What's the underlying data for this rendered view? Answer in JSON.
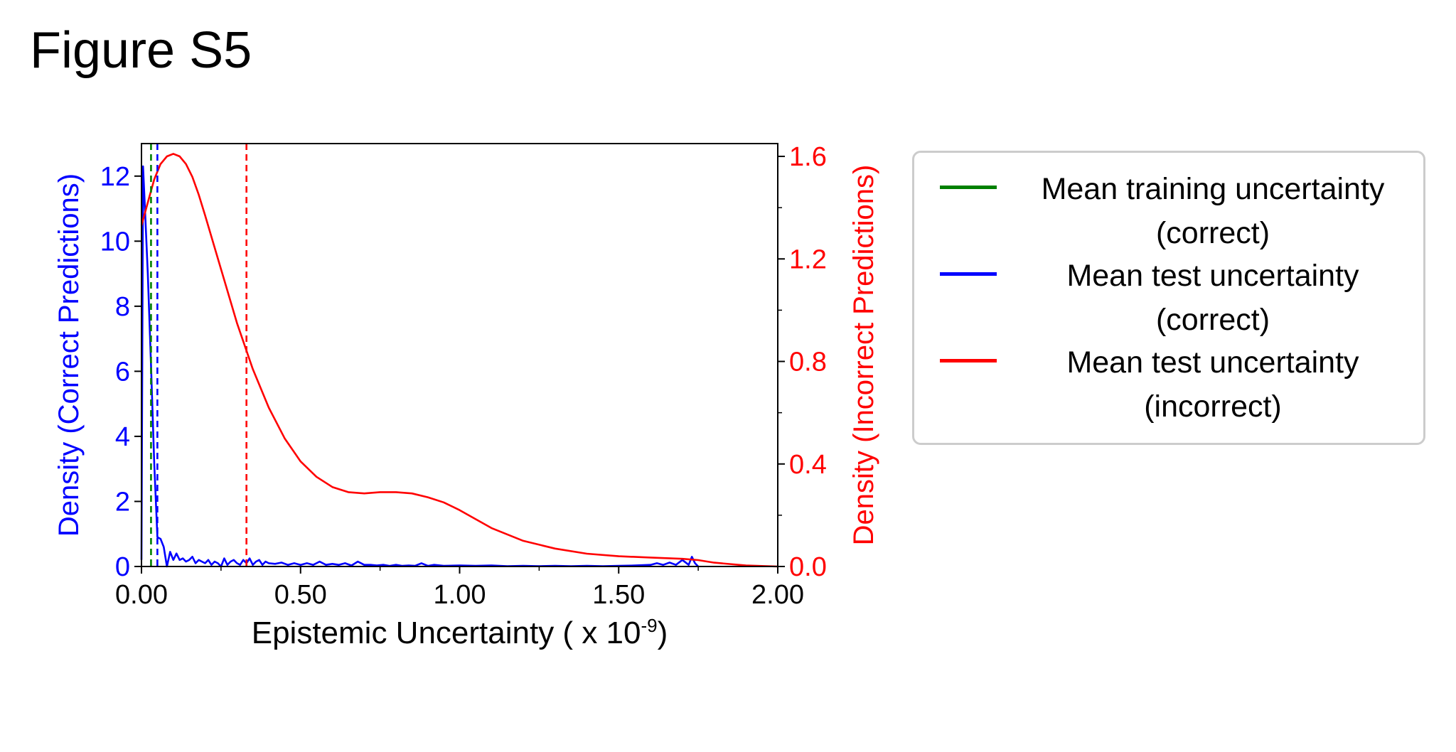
{
  "figure_title": "Figure S5",
  "chart_data": {
    "type": "line",
    "xlabel": "Epistemic Uncertainty ( x 10",
    "xlabel_exponent": "-9",
    "xlabel_suffix": ")",
    "xlim": [
      0,
      2.0
    ],
    "x_ticks": [
      "0.00",
      "0.50",
      "1.00",
      "1.50",
      "2.00"
    ],
    "x_tick_values": [
      0,
      0.5,
      1.0,
      1.5,
      2.0
    ],
    "x_minor_ticks": [
      0.25,
      0.75,
      1.25,
      1.75
    ],
    "y_left": {
      "label": "Density (Correct Predictions)",
      "color": "#0000ff",
      "ylim": [
        0,
        13
      ],
      "ticks": [
        "0",
        "2",
        "4",
        "6",
        "8",
        "10",
        "12"
      ],
      "tick_values": [
        0,
        2,
        4,
        6,
        8,
        10,
        12
      ]
    },
    "y_right": {
      "label": "Density (Incorrect Predictions)",
      "color": "#ff0000",
      "ylim": [
        0,
        1.65
      ],
      "ticks": [
        "0.0",
        "0.4",
        "0.8",
        "1.2",
        "1.6"
      ],
      "tick_values": [
        0,
        0.4,
        0.8,
        1.2,
        1.6
      ],
      "minor_ticks": [
        0.2,
        0.6,
        1.0,
        1.4
      ]
    },
    "series": [
      {
        "name": "Mean test uncertainty (correct)",
        "axis": "left",
        "color": "#0000ff",
        "x": [
          0.0,
          0.005,
          0.01,
          0.02,
          0.03,
          0.04,
          0.05,
          0.06,
          0.07,
          0.08,
          0.09,
          0.1,
          0.11,
          0.12,
          0.13,
          0.14,
          0.15,
          0.16,
          0.17,
          0.18,
          0.19,
          0.2,
          0.21,
          0.22,
          0.23,
          0.24,
          0.25,
          0.26,
          0.27,
          0.28,
          0.29,
          0.3,
          0.31,
          0.32,
          0.33,
          0.34,
          0.35,
          0.36,
          0.37,
          0.38,
          0.39,
          0.4,
          0.42,
          0.44,
          0.46,
          0.48,
          0.5,
          0.52,
          0.54,
          0.56,
          0.58,
          0.6,
          0.62,
          0.64,
          0.66,
          0.68,
          0.7,
          0.72,
          0.74,
          0.76,
          0.78,
          0.8,
          0.82,
          0.84,
          0.86,
          0.88,
          0.9,
          0.92,
          0.95,
          1.0,
          1.05,
          1.1,
          1.15,
          1.2,
          1.25,
          1.3,
          1.35,
          1.4,
          1.45,
          1.5,
          1.55,
          1.6,
          1.62,
          1.64,
          1.66,
          1.68,
          1.7,
          1.72,
          1.73,
          1.74,
          1.75
        ],
        "values": [
          0.2,
          12.3,
          11.2,
          9.0,
          6.2,
          3.2,
          0.9,
          0.85,
          0.6,
          0.0,
          0.45,
          0.2,
          0.4,
          0.2,
          0.25,
          0.15,
          0.2,
          0.3,
          0.1,
          0.2,
          0.15,
          0.1,
          0.2,
          0.05,
          0.15,
          0.1,
          0.0,
          0.25,
          0.05,
          0.15,
          0.2,
          0.1,
          0.05,
          0.2,
          0.1,
          0.25,
          0.05,
          0.15,
          0.2,
          0.05,
          0.15,
          0.1,
          0.08,
          0.12,
          0.05,
          0.1,
          0.05,
          0.1,
          0.05,
          0.15,
          0.05,
          0.08,
          0.05,
          0.1,
          0.03,
          0.15,
          0.05,
          0.05,
          0.03,
          0.05,
          0.02,
          0.05,
          0.02,
          0.03,
          0.02,
          0.1,
          0.02,
          0.05,
          0.02,
          0.03,
          0.02,
          0.03,
          0.01,
          0.02,
          0.01,
          0.02,
          0.01,
          0.02,
          0.01,
          0.02,
          0.03,
          0.05,
          0.1,
          0.05,
          0.12,
          0.05,
          0.2,
          0.05,
          0.3,
          0.1,
          0.0
        ]
      },
      {
        "name": "Mean test uncertainty (incorrect)",
        "axis": "right",
        "color": "#ff0000",
        "x": [
          0.0,
          0.02,
          0.04,
          0.06,
          0.08,
          0.1,
          0.12,
          0.14,
          0.16,
          0.18,
          0.2,
          0.25,
          0.3,
          0.35,
          0.4,
          0.45,
          0.5,
          0.55,
          0.6,
          0.65,
          0.7,
          0.75,
          0.8,
          0.85,
          0.9,
          0.95,
          1.0,
          1.1,
          1.2,
          1.3,
          1.4,
          1.5,
          1.6,
          1.7,
          1.75,
          1.8,
          1.9,
          2.0
        ],
        "values": [
          1.33,
          1.42,
          1.51,
          1.57,
          1.6,
          1.61,
          1.6,
          1.57,
          1.52,
          1.45,
          1.37,
          1.16,
          0.95,
          0.77,
          0.62,
          0.5,
          0.41,
          0.35,
          0.31,
          0.29,
          0.285,
          0.29,
          0.29,
          0.285,
          0.27,
          0.25,
          0.22,
          0.15,
          0.1,
          0.07,
          0.05,
          0.04,
          0.035,
          0.03,
          0.025,
          0.015,
          0.004,
          0.0
        ]
      }
    ],
    "vlines": [
      {
        "name": "Mean training uncertainty (correct)",
        "x": 0.03,
        "color": "#008000"
      },
      {
        "name": "Mean test uncertainty (correct)",
        "x": 0.05,
        "color": "#0000ff"
      },
      {
        "name": "Mean test uncertainty (incorrect)",
        "x": 0.33,
        "color": "#ff0000"
      }
    ],
    "legend": {
      "placement": "right",
      "entries": [
        {
          "line1": "Mean training uncertainty",
          "line2": "(correct)",
          "color": "#008000"
        },
        {
          "line1": "Mean test uncertainty",
          "line2": "(correct)",
          "color": "#0000ff"
        },
        {
          "line1": "Mean test uncertainty",
          "line2": "(incorrect)",
          "color": "#ff0000"
        }
      ]
    },
    "grid": false
  }
}
